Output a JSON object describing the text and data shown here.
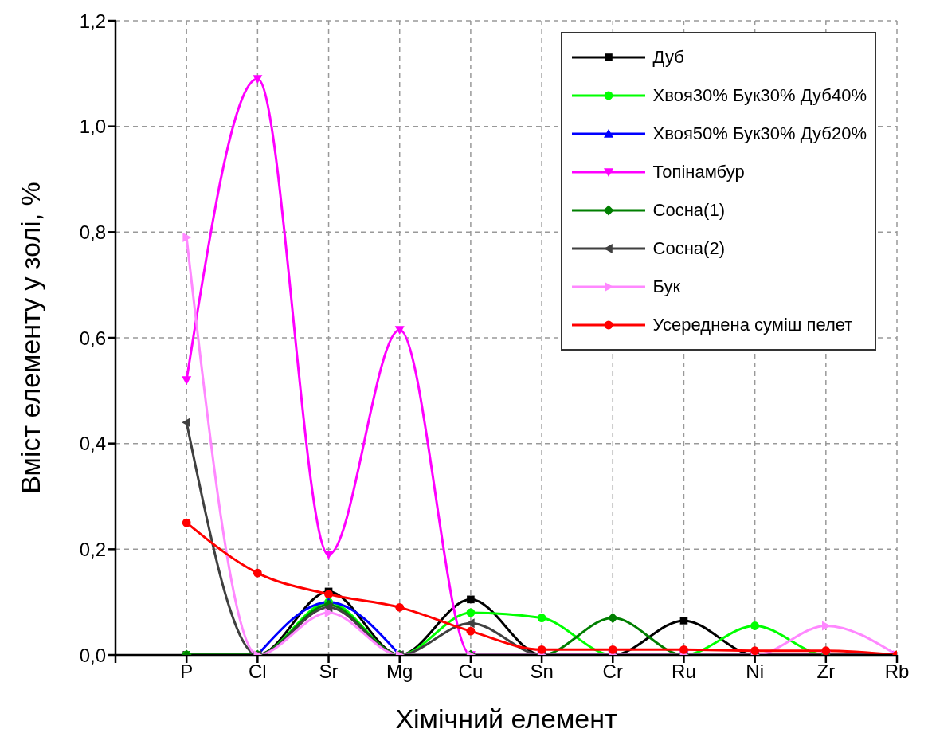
{
  "chart_data": {
    "type": "line",
    "xlabel": "Хімічний елемент",
    "ylabel": "Вміст елементу у золі, %",
    "categories": [
      null,
      "P",
      "Cl",
      "Sr",
      "Mg",
      "Cu",
      "Sn",
      "Cr",
      "Ru",
      "Ni",
      "Zr",
      "Rb"
    ],
    "ylim": [
      0,
      1.2
    ],
    "yticks": [
      {
        "value": 0,
        "label": "0,0"
      },
      {
        "value": 0.2,
        "label": "0,2"
      },
      {
        "value": 0.4,
        "label": "0,4"
      },
      {
        "value": 0.6,
        "label": "0,6"
      },
      {
        "value": 0.8,
        "label": "0,8"
      },
      {
        "value": 1,
        "label": "1,0"
      },
      {
        "value": 1.2,
        "label": "1,2"
      }
    ],
    "grid": true,
    "legend": "top right",
    "series": [
      {
        "name": "Дуб",
        "color": "#000000",
        "marker": "square",
        "values": [
          null,
          0,
          0,
          0.12,
          0,
          0.105,
          0,
          0,
          0.065,
          0,
          0,
          0
        ]
      },
      {
        "name": "Хвоя30% Бук30% Дуб40%",
        "color": "#00ff00",
        "marker": "circle",
        "values": [
          null,
          0,
          0,
          0.1,
          0,
          0.08,
          0.07,
          0,
          0,
          0.055,
          0,
          0
        ]
      },
      {
        "name": "Хвоя50% Бук30% Дуб20%",
        "color": "#0000ff",
        "marker": "triangle",
        "values": [
          null,
          null,
          0,
          0.1,
          0,
          null,
          null,
          null,
          null,
          null,
          null,
          null
        ]
      },
      {
        "name": "Топінамбур",
        "color": "#ff00ff",
        "marker": "triangle-down",
        "values": [
          null,
          0.52,
          1.09,
          0.19,
          0.615,
          0,
          0,
          0,
          0,
          0,
          0,
          0
        ]
      },
      {
        "name": "Сосна(1)",
        "color": "#007f00",
        "marker": "diamond",
        "values": [
          null,
          0,
          0,
          0.095,
          0,
          0,
          0,
          0.07,
          0,
          0,
          null,
          null
        ]
      },
      {
        "name": "Сосна(2)",
        "color": "#404040",
        "marker": "triangle-left",
        "values": [
          null,
          0.44,
          0,
          0.09,
          0,
          0.06,
          0,
          0,
          0,
          0,
          0,
          0
        ]
      },
      {
        "name": "Бук",
        "color": "#ff88ff",
        "marker": "triangle-right",
        "values": [
          null,
          0.79,
          0,
          0.08,
          0,
          0,
          0,
          0,
          0,
          0,
          0.055,
          0
        ]
      },
      {
        "name": "Усереднена суміш пелет",
        "color": "#ff0000",
        "marker": "circle",
        "values": [
          null,
          0.25,
          0.155,
          0.115,
          0.09,
          0.045,
          0.01,
          0.01,
          0.01,
          0.008,
          0.008,
          0
        ]
      }
    ]
  }
}
